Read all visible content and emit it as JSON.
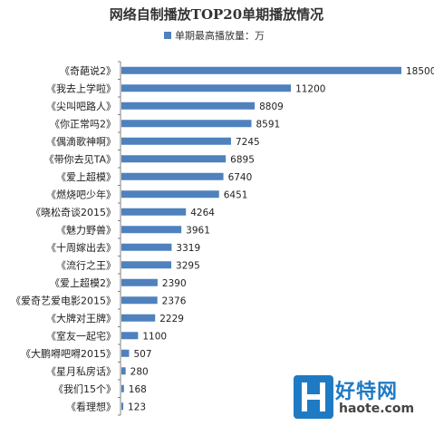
{
  "chart_data": {
    "type": "bar",
    "orientation": "horizontal",
    "title": "网络自制播放TOP20单期播放情况",
    "legend_position": "top-center",
    "grid": false,
    "colors": {
      "bar": "#4f81bd",
      "axis": "#808080"
    },
    "xlim": [
      0,
      18500
    ],
    "categories": [
      "《奇葩说2》",
      "《我去上学啦》",
      "《尖叫吧路人》",
      "《你正常吗2》",
      "《偶滴歌神啊》",
      "《带你去见TA》",
      "《爱上超模》",
      "《燃烧吧少年》",
      "《晓松奇谈2015》",
      "《魅力野兽》",
      "《十周嫁出去》",
      "《流行之王》",
      "《爱上超模2》",
      "《爱奇艺爱电影2015》",
      "《大牌对王牌》",
      "《室友一起宅》",
      "《大鹏嘚吧嘚2015》",
      "《星月私房话》",
      "《我们15个》",
      "《看理想》"
    ],
    "series": [
      {
        "name": "单期最高播放量：万",
        "values": [
          18500,
          11200,
          8809,
          8591,
          7245,
          6895,
          6740,
          6451,
          4264,
          3961,
          3319,
          3295,
          2390,
          2376,
          2229,
          1100,
          507,
          280,
          168,
          123
        ]
      }
    ]
  },
  "watermark": {
    "logo_letter": "H",
    "name": "好特网",
    "domain": "haote.com"
  }
}
